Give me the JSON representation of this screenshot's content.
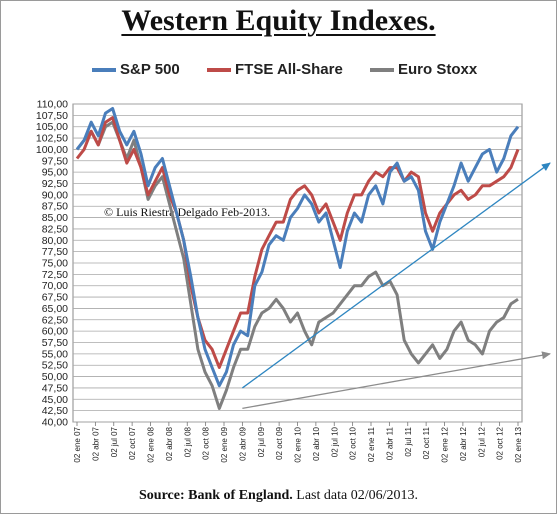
{
  "title": "Western Equity Indexes.",
  "watermark": "© Luis Riestra Delgado Feb-2013.",
  "footer": {
    "source_label": "Source: Bank of England.",
    "note": "Last data 02/06/2013."
  },
  "chart_data": {
    "type": "line",
    "title": "Western Equity Indexes.",
    "xlabel": "",
    "ylabel": "",
    "ylim": [
      40,
      110
    ],
    "y_ticks": [
      "40,00",
      "42,50",
      "45,00",
      "47,50",
      "50,00",
      "52,50",
      "55,00",
      "57,50",
      "60,00",
      "62,50",
      "65,00",
      "67,50",
      "70,00",
      "72,50",
      "75,00",
      "77,50",
      "80,00",
      "82,50",
      "85,00",
      "87,50",
      "90,00",
      "92,50",
      "95,00",
      "97,50",
      "100,00",
      "102,50",
      "105,00",
      "107,50",
      "110,00"
    ],
    "x_ticks": [
      "02 ene 07",
      "02 abr 07",
      "02 jul 07",
      "02 oct 07",
      "02 ene 08",
      "02 abr 08",
      "02 jul 08",
      "02 oct 08",
      "02 ene 09",
      "02 abr 09",
      "02 jul 09",
      "02 oct 09",
      "02 ene 10",
      "02 abr 10",
      "02 jul 10",
      "02 oct 10",
      "02 ene 11",
      "02 abr 11",
      "02 jul 11",
      "02 oct 11",
      "02 ene 12",
      "02 abr 12",
      "02 jul 12",
      "02 oct 12",
      "02 ene 13"
    ],
    "grid": true,
    "legend_position": "top",
    "series": [
      {
        "name": "S&P 500",
        "color": "#4a7ebb",
        "values": [
          100,
          102,
          106,
          103,
          108,
          109,
          104,
          101,
          104,
          99,
          92,
          96,
          98,
          92,
          86,
          80,
          72,
          63,
          56,
          52,
          48,
          51,
          57,
          60,
          59,
          70,
          73,
          79,
          81,
          80,
          85,
          87,
          90,
          88,
          84,
          86,
          80,
          74,
          82,
          86,
          84,
          90,
          92,
          88,
          95,
          97,
          93,
          94,
          91,
          82,
          78,
          84,
          88,
          92,
          97,
          93,
          96,
          99,
          100,
          95,
          98,
          103,
          105
        ]
      },
      {
        "name": "FTSE All-Share",
        "color": "#be4b48",
        "values": [
          98,
          100,
          104,
          101,
          106,
          107,
          102,
          97,
          100,
          96,
          90,
          93,
          96,
          90,
          86,
          80,
          70,
          63,
          58,
          56,
          52,
          56,
          60,
          64,
          64,
          72,
          78,
          81,
          84,
          84,
          89,
          91,
          92,
          90,
          86,
          88,
          84,
          80,
          86,
          90,
          90,
          93,
          95,
          94,
          96,
          96,
          93,
          95,
          94,
          86,
          82,
          86,
          88,
          90,
          91,
          89,
          90,
          92,
          92,
          93,
          94,
          96,
          100
        ]
      },
      {
        "name": "Euro Stoxx",
        "color": "#7f7f7f",
        "values": [
          100,
          102,
          104,
          101,
          105,
          106,
          102,
          98,
          102,
          96,
          89,
          92,
          94,
          88,
          82,
          76,
          66,
          56,
          51,
          48,
          43,
          47,
          52,
          56,
          56,
          61,
          64,
          65,
          67,
          65,
          62,
          64,
          60,
          57,
          62,
          63,
          64,
          66,
          68,
          70,
          70,
          72,
          73,
          70,
          71,
          68,
          58,
          55,
          53,
          55,
          57,
          54,
          56,
          60,
          62,
          58,
          57,
          55,
          60,
          62,
          63,
          66,
          67
        ]
      }
    ],
    "trendlines": [
      {
        "from": [
          "02 abr 09",
          47.5
        ],
        "to": [
          "02 abr 13",
          97
        ],
        "color": "#2e86c1"
      },
      {
        "from": [
          "02 abr 09",
          43
        ],
        "to": [
          "02 abr 13",
          55
        ],
        "color": "#8c8c8c"
      }
    ]
  }
}
